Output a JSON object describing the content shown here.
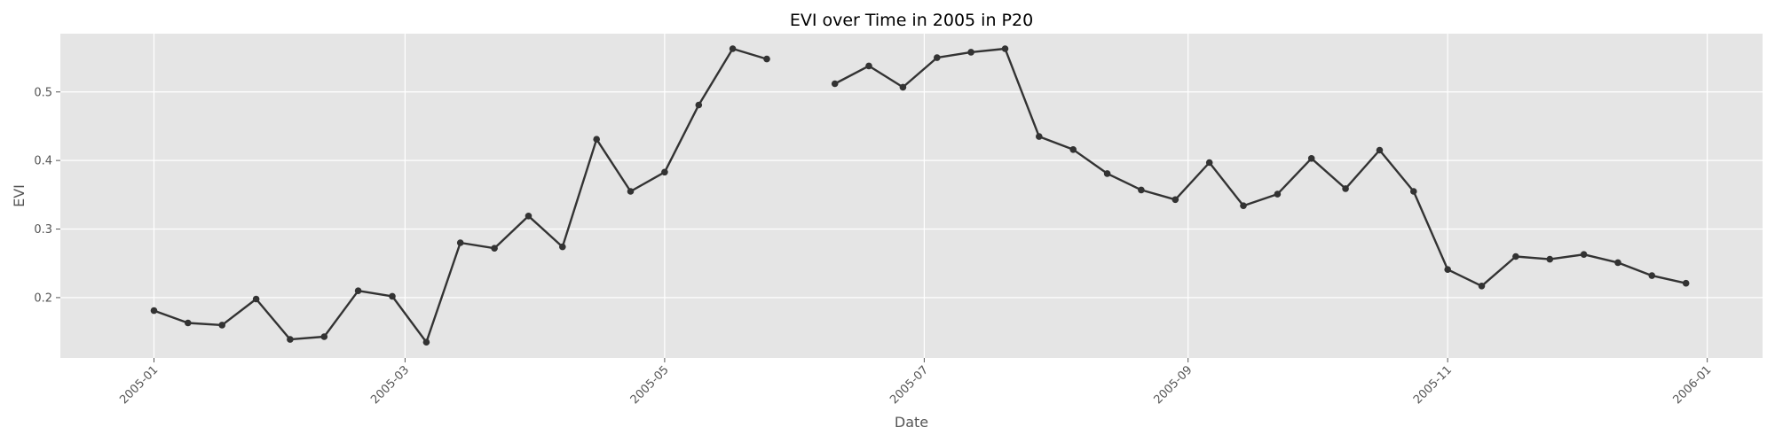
{
  "chart_data": {
    "type": "line",
    "title": "EVI over Time in 2005 in P20",
    "xlabel": "Date",
    "ylabel": "EVI",
    "x_axis_type": "date",
    "xlim": [
      "2004-12-10",
      "2006-01-14"
    ],
    "ylim": [
      0.112,
      0.585
    ],
    "x_ticks": [
      "2005-01",
      "2005-03",
      "2005-05",
      "2005-07",
      "2005-09",
      "2005-11",
      "2006-01"
    ],
    "y_ticks": [
      0.2,
      0.3,
      0.4,
      0.5
    ],
    "grid": true,
    "marker": "circle",
    "colors": {
      "line": "#333333",
      "plot_bg": "#e5e5e5",
      "grid": "#ffffff",
      "tick_text": "#555555"
    },
    "series": [
      {
        "points": [
          [
            "2005-01-01",
            0.181
          ],
          [
            "2005-01-09",
            0.163
          ],
          [
            "2005-01-17",
            0.16
          ],
          [
            "2005-01-25",
            0.198
          ],
          [
            "2005-02-02",
            0.139
          ],
          [
            "2005-02-10",
            0.143
          ],
          [
            "2005-02-18",
            0.21
          ],
          [
            "2005-02-26",
            0.202
          ],
          [
            "2005-03-06",
            0.135
          ],
          [
            "2005-03-14",
            0.28
          ],
          [
            "2005-03-22",
            0.272
          ],
          [
            "2005-03-30",
            0.319
          ],
          [
            "2005-04-07",
            0.274
          ],
          [
            "2005-04-15",
            0.431
          ],
          [
            "2005-04-23",
            0.355
          ],
          [
            "2005-05-01",
            0.383
          ],
          [
            "2005-05-09",
            0.481
          ],
          [
            "2005-05-17",
            0.563
          ],
          [
            "2005-05-25",
            0.548
          ],
          [
            "2005-06-02",
            null
          ],
          [
            "2005-06-10",
            0.512
          ],
          [
            "2005-06-18",
            0.538
          ],
          [
            "2005-06-26",
            0.507
          ],
          [
            "2005-07-04",
            0.55
          ],
          [
            "2005-07-12",
            0.558
          ],
          [
            "2005-07-20",
            0.563
          ],
          [
            "2005-07-28",
            0.435
          ],
          [
            "2005-08-05",
            0.416
          ],
          [
            "2005-08-13",
            0.381
          ],
          [
            "2005-08-21",
            0.357
          ],
          [
            "2005-08-29",
            0.343
          ],
          [
            "2005-09-06",
            0.397
          ],
          [
            "2005-09-14",
            0.334
          ],
          [
            "2005-09-22",
            0.351
          ],
          [
            "2005-09-30",
            0.403
          ],
          [
            "2005-10-08",
            0.359
          ],
          [
            "2005-10-16",
            0.415
          ],
          [
            "2005-10-24",
            0.355
          ],
          [
            "2005-11-01",
            0.241
          ],
          [
            "2005-11-09",
            0.217
          ],
          [
            "2005-11-17",
            0.26
          ],
          [
            "2005-11-25",
            0.256
          ],
          [
            "2005-12-03",
            0.263
          ],
          [
            "2005-12-11",
            0.251
          ],
          [
            "2005-12-19",
            0.232
          ],
          [
            "2005-12-27",
            0.221
          ]
        ]
      }
    ]
  }
}
